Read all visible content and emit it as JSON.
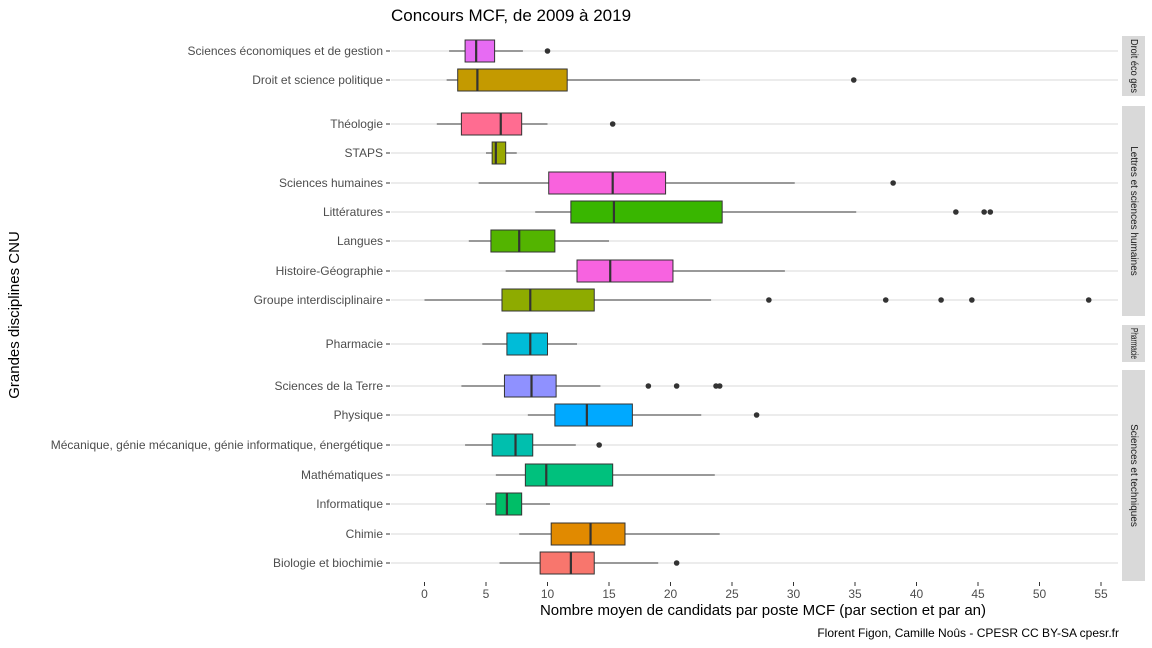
{
  "chart_data": {
    "type": "boxplot",
    "title": "Concours MCF, de 2009 à 2019",
    "xlabel": "Nombre moyen de candidats par poste MCF (par section et par an)",
    "ylabel": "Grandes disciplines CNU",
    "caption": "Florent Figon, Camille Noûs - CPESR CC BY-SA cpesr.fr",
    "xlim": [
      -2.3,
      56.5
    ],
    "xticks": [
      0,
      5,
      10,
      15,
      20,
      25,
      30,
      35,
      40,
      45,
      50,
      55
    ],
    "grid": true,
    "facets": [
      {
        "strip": "Droit éco ges",
        "rows": [
          {
            "label": "Sciences économiques et de gestion",
            "min": 2.0,
            "q1": 3.3,
            "median": 4.2,
            "q3": 5.7,
            "max": 8.0,
            "outliers": [
              10.0
            ],
            "color": "#E76BF3"
          },
          {
            "label": "Droit et science politique",
            "min": 1.8,
            "q1": 2.7,
            "median": 4.3,
            "q3": 11.6,
            "max": 22.4,
            "outliers": [
              34.9
            ],
            "color": "#C49A00"
          }
        ]
      },
      {
        "strip": "Lettres et sciences humaines",
        "rows": [
          {
            "label": "Théologie",
            "min": 1.0,
            "q1": 3.0,
            "median": 6.2,
            "q3": 7.9,
            "max": 10.0,
            "outliers": [
              15.3
            ],
            "color": "#FF6C91"
          },
          {
            "label": "STAPS",
            "min": 5.0,
            "q1": 5.5,
            "median": 5.8,
            "q3": 6.6,
            "max": 7.5,
            "outliers": [],
            "color": "#99A800"
          },
          {
            "label": "Sciences humaines",
            "min": 4.4,
            "q1": 10.1,
            "median": 15.3,
            "q3": 19.6,
            "max": 30.1,
            "outliers": [
              38.1
            ],
            "color": "#F962DD"
          },
          {
            "label": "Littératures",
            "min": 9.0,
            "q1": 11.9,
            "median": 15.4,
            "q3": 24.2,
            "max": 35.1,
            "outliers": [
              43.2,
              45.5,
              46.0
            ],
            "color": "#39B600"
          },
          {
            "label": "Langues",
            "min": 3.6,
            "q1": 5.4,
            "median": 7.7,
            "q3": 10.6,
            "max": 15.0,
            "outliers": [],
            "color": "#53B400"
          },
          {
            "label": "Histoire-Géographie",
            "min": 6.6,
            "q1": 12.4,
            "median": 15.1,
            "q3": 20.2,
            "max": 29.3,
            "outliers": [],
            "color": "#F763E0"
          },
          {
            "label": "Groupe interdisciplinaire",
            "min": 0.0,
            "q1": 6.3,
            "median": 8.6,
            "q3": 13.8,
            "max": 23.3,
            "outliers": [
              28.0,
              37.5,
              42.0,
              44.5,
              54.0
            ],
            "color": "#8EAB00"
          }
        ]
      },
      {
        "strip": "Pharmacie",
        "rows": [
          {
            "label": "Pharmacie",
            "min": 4.7,
            "q1": 6.7,
            "median": 8.6,
            "q3": 10.0,
            "max": 12.4,
            "outliers": [],
            "color": "#00BCD8"
          }
        ]
      },
      {
        "strip": "Sciences et techniques",
        "rows": [
          {
            "label": "Sciences de la Terre",
            "min": 3.0,
            "q1": 6.5,
            "median": 8.7,
            "q3": 10.7,
            "max": 14.3,
            "outliers": [
              18.2,
              20.5,
              23.7,
              24.0
            ],
            "color": "#8F91FF"
          },
          {
            "label": "Physique",
            "min": 8.4,
            "q1": 10.6,
            "median": 13.2,
            "q3": 16.9,
            "max": 22.5,
            "outliers": [
              27.0
            ],
            "color": "#00A9FF"
          },
          {
            "label": "Mécanique, génie mécanique, génie informatique, énergétique",
            "min": 3.3,
            "q1": 5.5,
            "median": 7.4,
            "q3": 8.8,
            "max": 12.3,
            "outliers": [
              14.2
            ],
            "color": "#00BFAE"
          },
          {
            "label": "Mathématiques",
            "min": 5.8,
            "q1": 8.2,
            "median": 9.9,
            "q3": 15.3,
            "max": 23.6,
            "outliers": [],
            "color": "#00C17D"
          },
          {
            "label": "Informatique",
            "min": 5.0,
            "q1": 5.8,
            "median": 6.7,
            "q3": 7.9,
            "max": 10.2,
            "outliers": [],
            "color": "#00BE67"
          },
          {
            "label": "Chimie",
            "min": 7.7,
            "q1": 10.3,
            "median": 13.5,
            "q3": 16.3,
            "max": 24.0,
            "outliers": [],
            "color": "#E18A00"
          },
          {
            "label": "Biologie et biochimie",
            "min": 6.1,
            "q1": 9.4,
            "median": 11.9,
            "q3": 13.8,
            "max": 19.0,
            "outliers": [
              20.5
            ],
            "color": "#F8766D"
          }
        ]
      }
    ]
  }
}
